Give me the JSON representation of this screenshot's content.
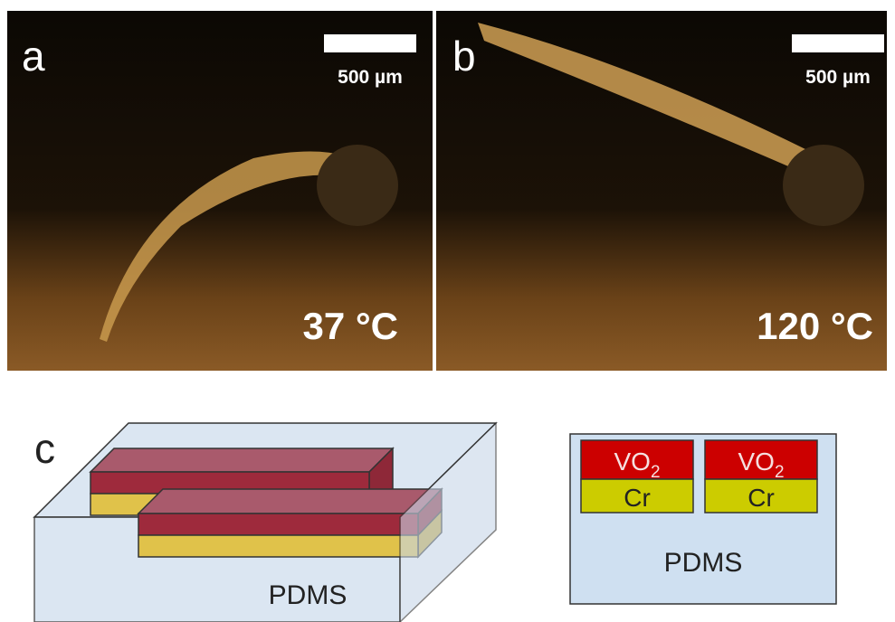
{
  "panels": [
    {
      "label": "a",
      "scale_bar": "500 µm",
      "temperature": "37 °C"
    },
    {
      "label": "b",
      "scale_bar": "500 µm",
      "temperature": "120 °C"
    }
  ],
  "diagram": {
    "label": "c",
    "box_label": "PDMS",
    "cross_section": {
      "columns": [
        {
          "top": {
            "text": "VO",
            "sub": "2"
          },
          "bottom": "Cr"
        },
        {
          "top": {
            "text": "VO",
            "sub": "2"
          },
          "bottom": "Cr"
        }
      ],
      "substrate": "PDMS"
    }
  }
}
